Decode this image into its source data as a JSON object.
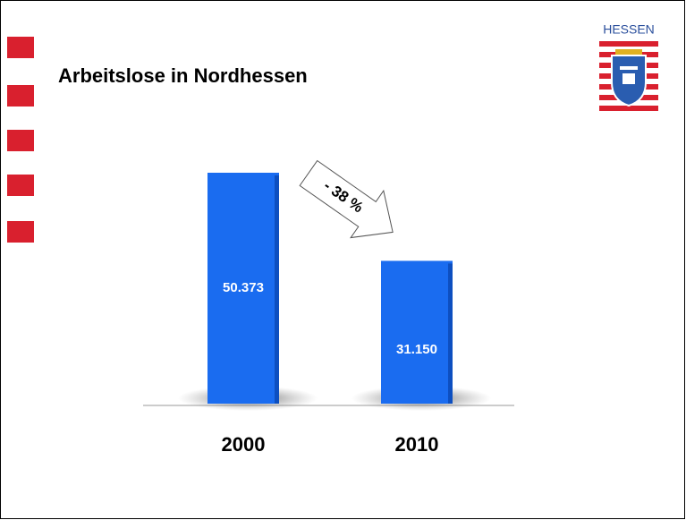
{
  "chart_data": {
    "type": "bar",
    "title": "Arbeitslose in Nordhessen",
    "categories": [
      "2000",
      "2010"
    ],
    "values": [
      50373,
      31150
    ],
    "value_labels": [
      "50.373",
      "31.150"
    ],
    "color": "#1a6cf0",
    "annotation": "- 38 %"
  },
  "logo": {
    "label": "HESSEN"
  }
}
